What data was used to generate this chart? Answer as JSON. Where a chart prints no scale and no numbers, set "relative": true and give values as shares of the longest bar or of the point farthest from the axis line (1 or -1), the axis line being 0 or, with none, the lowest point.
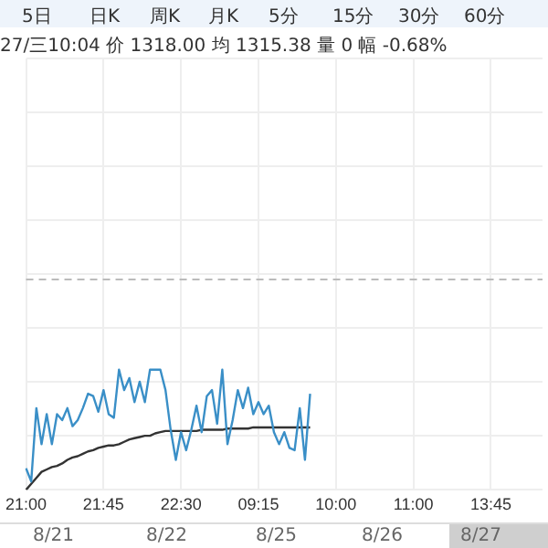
{
  "chart_data": {
    "type": "line",
    "subtitle": "27/三10:04 价 1318.00 均 1315.38 量 0 幅 -0.68%",
    "annotations": [
      "5日",
      "日K",
      "周K",
      "月K",
      "5分",
      "15分",
      "30分",
      "60分",
      "8/21",
      "8/22",
      "8/25",
      "8/26",
      "8/27"
    ],
    "relative": true,
    "categories": [
      "21:00",
      null,
      null,
      null,
      null,
      null,
      null,
      null,
      null,
      null,
      null,
      null,
      null,
      null,
      null,
      "21:45",
      null,
      null,
      null,
      null,
      null,
      null,
      null,
      null,
      null,
      null,
      null,
      null,
      null,
      null,
      "22:30",
      null,
      null,
      null,
      null,
      null,
      null,
      null,
      null,
      null,
      null,
      null,
      null,
      null,
      null,
      "09:15",
      null,
      null,
      null,
      null,
      null,
      null,
      null,
      null,
      null,
      null,
      null,
      null,
      null,
      null,
      "10:00",
      null,
      null,
      null,
      null,
      null,
      null,
      null,
      null,
      null,
      null,
      null,
      null,
      null,
      null,
      "11:00",
      null,
      null,
      null,
      null,
      null,
      null,
      null,
      null,
      null,
      null,
      null,
      null,
      null,
      null,
      "13:45",
      null,
      null,
      null,
      null,
      null,
      null,
      null,
      null,
      null,
      null
    ],
    "tick_labels": "x",
    "grid": true,
    "legend": false,
    "marker": "none",
    "line_style": "solid",
    "ref_lines": [
      {
        "axis": "y",
        "value": 1.75,
        "color": "#bbbbbb",
        "line_style": "dashed"
      }
    ],
    "series": [
      {
        "color": "#3a8fc7",
        "values": [
          0.18,
          0.07,
          0.68,
          0.38,
          0.63,
          0.38,
          0.63,
          0.58,
          0.68,
          0.53,
          0.58,
          0.68,
          0.8,
          0.78,
          0.65,
          0.83,
          0.63,
          0.6,
          1,
          0.83,
          0.93,
          0.73,
          0.9,
          0.73,
          1,
          1,
          1,
          0.83,
          0.5,
          0.25,
          0.48,
          0.33,
          0.5,
          0.7,
          0.48,
          0.78,
          0.83,
          0.55,
          1,
          0.38,
          0.58,
          0.83,
          0.68,
          0.85,
          0.63,
          0.73,
          0.63,
          0.7,
          0.48,
          0.38,
          0.48,
          0.35,
          0.33,
          0.68,
          0.25,
          0.8,
          null,
          null,
          null,
          null,
          null,
          null,
          null,
          null,
          null,
          null,
          null,
          null,
          null,
          null,
          null,
          null,
          null,
          null,
          null,
          null,
          null,
          null,
          null,
          null,
          null,
          null,
          null,
          null,
          null,
          null,
          null,
          null,
          null,
          null,
          null,
          null,
          null,
          null,
          null,
          null,
          null,
          null,
          null,
          null,
          null
        ]
      },
      {
        "color": "#333333",
        "values": [
          0,
          0.05,
          0.1,
          0.15,
          0.17,
          0.19,
          0.2,
          0.22,
          0.25,
          0.27,
          0.28,
          0.3,
          0.32,
          0.33,
          0.35,
          0.36,
          0.37,
          0.37,
          0.38,
          0.4,
          0.42,
          0.43,
          0.44,
          0.45,
          0.45,
          0.47,
          0.48,
          0.49,
          0.49,
          0.49,
          0.49,
          0.49,
          0.49,
          0.49,
          0.5,
          0.5,
          0.5,
          0.5,
          0.5,
          0.51,
          0.51,
          0.51,
          0.51,
          0.51,
          0.52,
          0.52,
          0.52,
          0.52,
          0.52,
          0.52,
          0.52,
          0.52,
          0.52,
          0.52,
          0.52,
          0.52,
          null,
          null,
          null,
          null,
          null,
          null,
          null,
          null,
          null,
          null,
          null,
          null,
          null,
          null,
          null,
          null,
          null,
          null,
          null,
          null,
          null,
          null,
          null,
          null,
          null,
          null,
          null,
          null,
          null,
          null,
          null,
          null,
          null,
          null,
          null,
          null,
          null,
          null,
          null,
          null,
          null,
          null,
          null,
          null,
          null
        ]
      }
    ]
  }
}
